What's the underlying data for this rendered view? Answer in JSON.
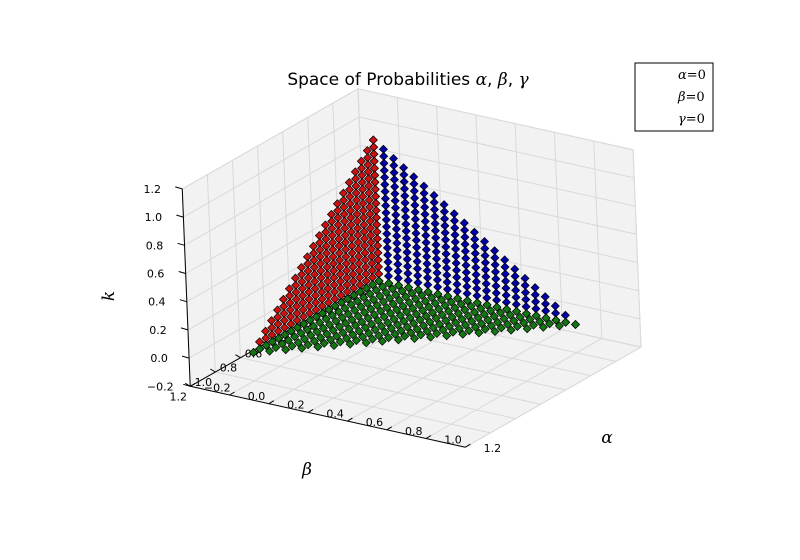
{
  "chart_data": {
    "type": "scatter",
    "title_prefix": "Space of Probabilities ",
    "title_symbols": [
      "α",
      "β",
      "γ"
    ],
    "xlabel": "α",
    "ylabel": "β",
    "zlabel": "k",
    "xlim": [
      -0.2,
      1.2
    ],
    "ylim": [
      -0.2,
      1.2
    ],
    "zlim": [
      -0.2,
      1.2
    ],
    "ticks": [
      "−0.2",
      "0.0",
      "0.2",
      "0.4",
      "0.6",
      "0.8",
      "1.0",
      "1.2"
    ],
    "tick_values": [
      -0.2,
      0.0,
      0.2,
      0.4,
      0.6,
      0.8,
      1.0,
      1.2
    ],
    "grid": true,
    "legend_position": "top-right",
    "marker": "diamond",
    "grid_steps": 20,
    "series": [
      {
        "name": "α=0",
        "symbol": "α",
        "suffix": "=0",
        "color": "#0000a8",
        "plane": "alpha_zero",
        "description_sum": 1
      },
      {
        "name": "β=0",
        "symbol": "β",
        "suffix": "=0",
        "color": "#cc1111",
        "plane": "beta_zero",
        "description_sum": 1
      },
      {
        "name": "γ=0",
        "symbol": "γ",
        "suffix": "=0",
        "color": "#117711",
        "plane": "gamma_zero",
        "description_sum": 1
      }
    ]
  }
}
